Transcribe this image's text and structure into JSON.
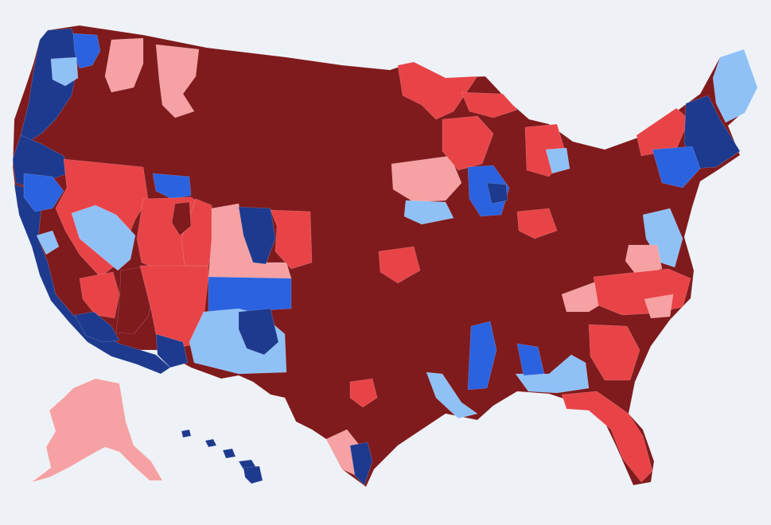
{
  "map": {
    "colors": {
      "background": "#eef2f7",
      "solid_republican": "#7f1a1d",
      "likely_republican": "#e84447",
      "lean_republican": "#f6a1a3",
      "lean_democrat": "#8fc1f7",
      "likely_democrat": "#2a62e0",
      "solid_democrat": "#1d3a8e"
    },
    "regions": [
      {
        "id": "base-conus",
        "fill": "solid_republican"
      },
      {
        "id": "pnw-coast",
        "fill": "solid_democrat"
      },
      {
        "id": "seattle-area",
        "fill": "likely_democrat"
      },
      {
        "id": "wa-light",
        "fill": "lean_democrat"
      },
      {
        "id": "eastern-wa",
        "fill": "lean_republican"
      },
      {
        "id": "idaho-panhandle",
        "fill": "lean_republican"
      },
      {
        "id": "oregon-coast",
        "fill": "solid_democrat"
      },
      {
        "id": "california-coast",
        "fill": "solid_democrat"
      },
      {
        "id": "california-blue",
        "fill": "likely_democrat"
      },
      {
        "id": "norcal-red",
        "fill": "likely_republican"
      },
      {
        "id": "central-valley-light",
        "fill": "lean_democrat"
      },
      {
        "id": "nevada-red",
        "fill": "likely_republican"
      },
      {
        "id": "reno-blue",
        "fill": "likely_democrat"
      },
      {
        "id": "las-vegas-light",
        "fill": "lean_democrat"
      },
      {
        "id": "socal-red",
        "fill": "likely_republican"
      },
      {
        "id": "socal-dark",
        "fill": "solid_republican"
      },
      {
        "id": "socal-blue",
        "fill": "solid_democrat"
      },
      {
        "id": "arizona-red",
        "fill": "likely_republican"
      },
      {
        "id": "arizona-blue",
        "fill": "solid_democrat"
      },
      {
        "id": "utah-red",
        "fill": "likely_republican"
      },
      {
        "id": "utah-dark",
        "fill": "solid_republican"
      },
      {
        "id": "colorado-pink",
        "fill": "lean_republican"
      },
      {
        "id": "colorado-dark-blue",
        "fill": "solid_democrat"
      },
      {
        "id": "colorado-red",
        "fill": "likely_republican"
      },
      {
        "id": "new-mexico-blue",
        "fill": "likely_democrat"
      },
      {
        "id": "new-mexico-light",
        "fill": "lean_democrat"
      },
      {
        "id": "new-mexico-dark",
        "fill": "solid_democrat"
      },
      {
        "id": "texas-red-1",
        "fill": "likely_republican"
      },
      {
        "id": "texas-pink",
        "fill": "lean_republican"
      },
      {
        "id": "texas-blue",
        "fill": "solid_democrat"
      },
      {
        "id": "minnesota-red",
        "fill": "likely_republican"
      },
      {
        "id": "iowa-pink",
        "fill": "lean_republican"
      },
      {
        "id": "iowa-light",
        "fill": "lean_democrat"
      },
      {
        "id": "wisconsin-red",
        "fill": "likely_republican"
      },
      {
        "id": "michigan-up-red",
        "fill": "likely_republican"
      },
      {
        "id": "chicago-blue",
        "fill": "likely_democrat"
      },
      {
        "id": "chicago-dark",
        "fill": "solid_democrat"
      },
      {
        "id": "michigan-red",
        "fill": "likely_republican"
      },
      {
        "id": "michigan-light",
        "fill": "lean_democrat"
      },
      {
        "id": "ny-red",
        "fill": "likely_republican"
      },
      {
        "id": "northeast-dark",
        "fill": "solid_democrat"
      },
      {
        "id": "northeast-blue",
        "fill": "likely_democrat"
      },
      {
        "id": "maine-light",
        "fill": "lean_democrat"
      },
      {
        "id": "mid-atlantic-light",
        "fill": "lean_democrat"
      },
      {
        "id": "virginia-pink",
        "fill": "lean_republican"
      },
      {
        "id": "carolinas-red",
        "fill": "likely_republican"
      },
      {
        "id": "carolinas-pink",
        "fill": "lean_republican"
      },
      {
        "id": "georgia-red",
        "fill": "likely_republican"
      },
      {
        "id": "alabama-light",
        "fill": "lean_democrat"
      },
      {
        "id": "alabama-blue",
        "fill": "likely_democrat"
      },
      {
        "id": "mississippi-blue",
        "fill": "likely_democrat"
      },
      {
        "id": "louisiana-light",
        "fill": "lean_democrat"
      },
      {
        "id": "florida-red",
        "fill": "likely_republican"
      },
      {
        "id": "ohio-red",
        "fill": "likely_republican"
      },
      {
        "id": "kentucky-pink",
        "fill": "lean_republican"
      },
      {
        "id": "missouri-red",
        "fill": "likely_republican"
      },
      {
        "id": "alaska",
        "fill": "lean_republican"
      },
      {
        "id": "hawaii",
        "fill": "solid_democrat"
      }
    ]
  }
}
